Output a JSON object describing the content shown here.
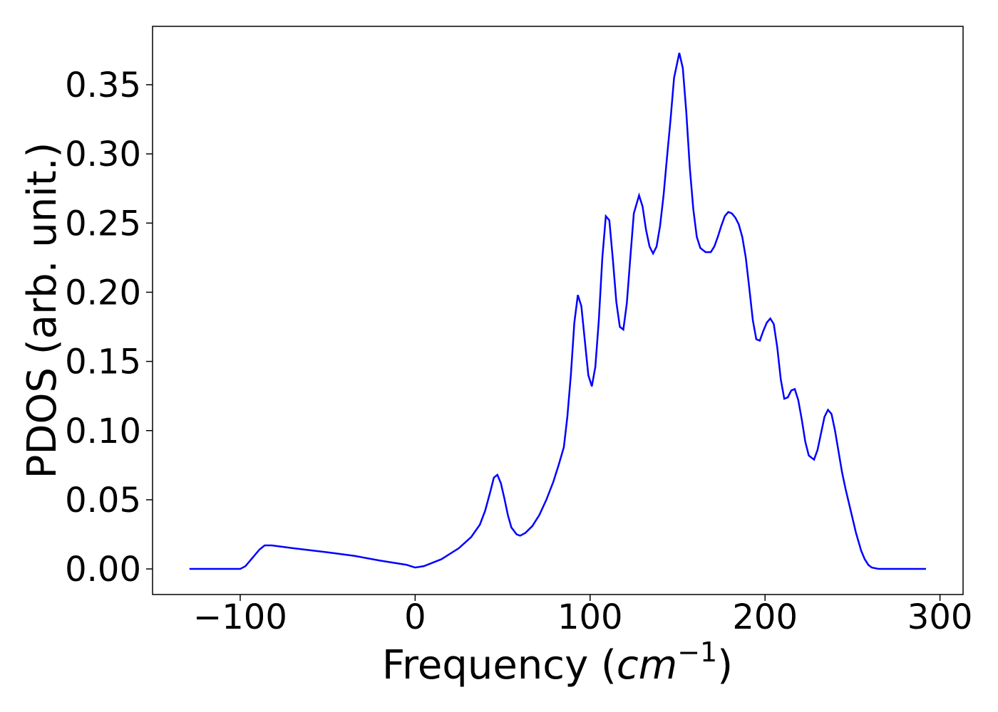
{
  "chart_data": {
    "type": "line",
    "xlabel": {
      "prefix": "Frequency (",
      "math": "cm",
      "sup": "−1",
      "suffix": ")"
    },
    "ylabel": "PDOS (arb. unit.)",
    "x": [
      -129,
      -100,
      -97,
      -93,
      -89,
      -86,
      -82,
      -70,
      -50,
      -35,
      -20,
      -5,
      0,
      5,
      15,
      25,
      32,
      37,
      40,
      43,
      45,
      47,
      49,
      51,
      53,
      55,
      58,
      60,
      63,
      67,
      71,
      75,
      79,
      82,
      85,
      87,
      89,
      91,
      93,
      95,
      97,
      99,
      101,
      103,
      105,
      107,
      109,
      111,
      113,
      115,
      117,
      119,
      121,
      123,
      125,
      128,
      130,
      132,
      134,
      136,
      138,
      140,
      142,
      144,
      146,
      148,
      151,
      153,
      155,
      157,
      159,
      161,
      163,
      166,
      169,
      171,
      173,
      175,
      177,
      179,
      181,
      183,
      185,
      187,
      189,
      191,
      193,
      195,
      197,
      199,
      201,
      203,
      205,
      207,
      209,
      211,
      213,
      215,
      217,
      219,
      221,
      223,
      225,
      228,
      230,
      232,
      234,
      236,
      238,
      240,
      242,
      244,
      246,
      249,
      252,
      255,
      257,
      259,
      261,
      265,
      292
    ],
    "series": [
      {
        "color": "#0000ff",
        "values": [
          0,
          0,
          0.002,
          0.008,
          0.014,
          0.017,
          0.017,
          0.015,
          0.012,
          0.0095,
          0.006,
          0.003,
          0.001,
          0.002,
          0.007,
          0.015,
          0.023,
          0.032,
          0.042,
          0.056,
          0.066,
          0.068,
          0.062,
          0.051,
          0.039,
          0.03,
          0.025,
          0.024,
          0.026,
          0.031,
          0.039,
          0.05,
          0.063,
          0.075,
          0.088,
          0.11,
          0.14,
          0.178,
          0.198,
          0.19,
          0.165,
          0.14,
          0.132,
          0.146,
          0.18,
          0.225,
          0.255,
          0.252,
          0.224,
          0.193,
          0.175,
          0.173,
          0.192,
          0.225,
          0.257,
          0.27,
          0.262,
          0.245,
          0.233,
          0.228,
          0.233,
          0.248,
          0.27,
          0.298,
          0.325,
          0.355,
          0.373,
          0.362,
          0.33,
          0.29,
          0.26,
          0.24,
          0.232,
          0.229,
          0.229,
          0.233,
          0.24,
          0.248,
          0.255,
          0.258,
          0.257,
          0.254,
          0.249,
          0.24,
          0.225,
          0.203,
          0.18,
          0.166,
          0.165,
          0.172,
          0.178,
          0.181,
          0.177,
          0.16,
          0.137,
          0.123,
          0.124,
          0.129,
          0.13,
          0.122,
          0.108,
          0.092,
          0.082,
          0.079,
          0.086,
          0.098,
          0.11,
          0.115,
          0.112,
          0.1,
          0.085,
          0.07,
          0.058,
          0.042,
          0.026,
          0.013,
          0.007,
          0.003,
          0.001,
          0,
          0
        ]
      }
    ],
    "xlim": [
      -150.1,
      313.2
    ],
    "ylim": [
      -0.0185,
      0.3922
    ],
    "xticks": [
      {
        "value": -100,
        "label": "−100"
      },
      0,
      100,
      200,
      300
    ],
    "yticks": [
      {
        "value": 0,
        "label": "0.00"
      },
      {
        "value": 0.05,
        "label": "0.05"
      },
      {
        "value": 0.1,
        "label": "0.10"
      },
      {
        "value": 0.15,
        "label": "0.15"
      },
      {
        "value": 0.2,
        "label": "0.20"
      },
      {
        "value": 0.25,
        "label": "0.25"
      },
      {
        "value": 0.3,
        "label": "0.30"
      },
      {
        "value": 0.35,
        "label": "0.35"
      }
    ]
  }
}
